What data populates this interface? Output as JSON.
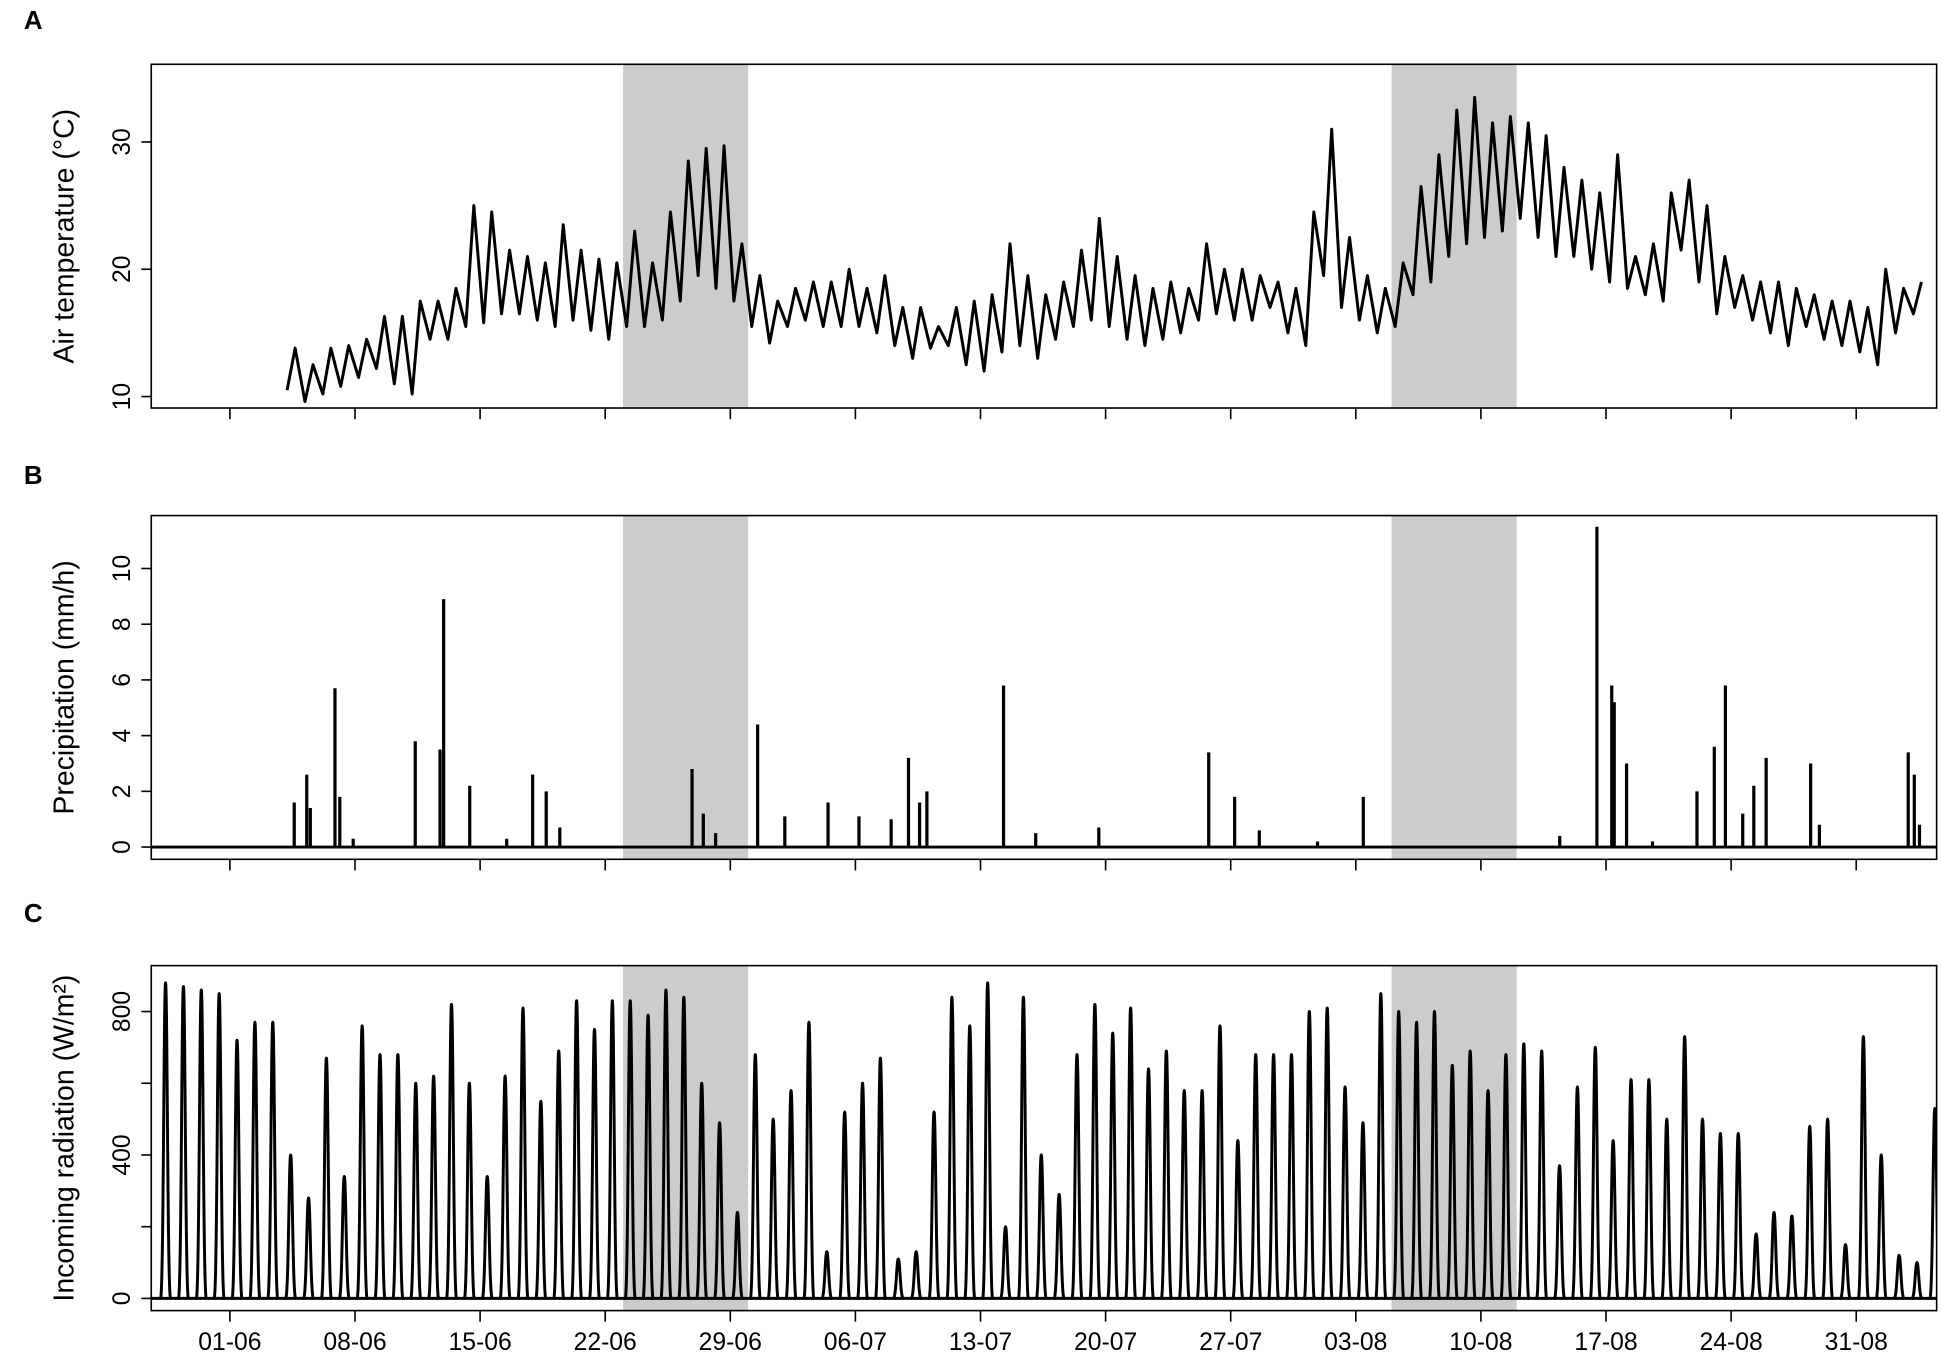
{
  "chart_data": [
    {
      "type": "line",
      "label": "A",
      "ylabel": "Air temperature (°C)",
      "color": "#000000",
      "highlight_color": "#cccccc",
      "highlights": [
        [
          22,
          29
        ],
        [
          65,
          72
        ]
      ],
      "xlim": [
        -4.4,
        95.5
      ],
      "xticks": [
        0,
        7,
        14,
        21,
        28,
        35,
        42,
        49,
        56,
        63,
        70,
        77,
        84,
        91
      ],
      "ylim": [
        9.1,
        36.1
      ],
      "yticks": [
        10,
        20,
        30
      ],
      "x": [
        3.2,
        3.65,
        4.2,
        4.65,
        5.2,
        5.65,
        6.2,
        6.65,
        7.2,
        7.65,
        8.2,
        8.65,
        9.2,
        9.65,
        10.2,
        10.65,
        11.2,
        11.65,
        12.2,
        12.65,
        13.2,
        13.65,
        14.2,
        14.65,
        15.2,
        15.65,
        16.2,
        16.65,
        17.2,
        17.65,
        18.2,
        18.65,
        19.2,
        19.65,
        20.2,
        20.65,
        21.2,
        21.65,
        22.2,
        22.65,
        23.2,
        23.65,
        24.2,
        24.65,
        25.2,
        25.65,
        26.2,
        26.65,
        27.2,
        27.65,
        28.2,
        28.65,
        29.2,
        29.65,
        30.2,
        30.65,
        31.2,
        31.65,
        32.2,
        32.65,
        33.2,
        33.65,
        34.2,
        34.65,
        35.2,
        35.65,
        36.2,
        36.65,
        37.2,
        37.65,
        38.2,
        38.65,
        39.2,
        39.65,
        40.2,
        40.65,
        41.2,
        41.65,
        42.2,
        42.65,
        43.2,
        43.65,
        44.2,
        44.65,
        45.2,
        45.65,
        46.2,
        46.65,
        47.2,
        47.65,
        48.2,
        48.65,
        49.2,
        49.65,
        50.2,
        50.65,
        51.2,
        51.65,
        52.2,
        52.65,
        53.2,
        53.65,
        54.2,
        54.65,
        55.2,
        55.65,
        56.2,
        56.65,
        57.2,
        57.65,
        58.2,
        58.65,
        59.2,
        59.65,
        60.2,
        60.65,
        61.2,
        61.65,
        62.2,
        62.65,
        63.2,
        63.65,
        64.2,
        64.65,
        65.2,
        65.65,
        66.2,
        66.65,
        67.2,
        67.65,
        68.2,
        68.65,
        69.2,
        69.65,
        70.2,
        70.65,
        71.2,
        71.65,
        72.2,
        72.65,
        73.2,
        73.65,
        74.2,
        74.65,
        75.2,
        75.65,
        76.2,
        76.65,
        77.2,
        77.65,
        78.2,
        78.65,
        79.2,
        79.65,
        80.2,
        80.65,
        81.2,
        81.65,
        82.2,
        82.65,
        83.2,
        83.65,
        84.2,
        84.65,
        85.2,
        85.65,
        86.2,
        86.65,
        87.2,
        87.65,
        88.2,
        88.65,
        89.2,
        89.65,
        90.2,
        90.65,
        91.2,
        91.65,
        92.2,
        92.65,
        93.2,
        93.65,
        94.2,
        94.65
      ],
      "values": [
        10.5,
        13.8,
        9.6,
        12.5,
        10.2,
        13.8,
        10.8,
        14,
        11.5,
        14.5,
        12.2,
        16.3,
        11,
        16.3,
        10.2,
        17.5,
        14.5,
        17.5,
        14.5,
        18.5,
        15.5,
        25,
        15.8,
        24.5,
        16.5,
        21.5,
        16.5,
        21,
        16,
        20.5,
        15.5,
        23.5,
        16,
        21.5,
        15.2,
        20.8,
        14.5,
        20.5,
        15.5,
        23,
        15.5,
        20.5,
        16,
        24.5,
        17.5,
        28.5,
        19.5,
        29.5,
        18.5,
        29.7,
        17.5,
        22,
        15.5,
        19.5,
        14.2,
        17.5,
        15.5,
        18.5,
        16,
        19,
        15.5,
        19,
        15.5,
        20,
        15.5,
        18.5,
        15,
        19.5,
        14,
        17,
        13,
        17,
        13.8,
        15.5,
        14,
        17,
        12.5,
        17.5,
        12,
        18,
        13.5,
        22,
        14,
        19.5,
        13,
        18,
        14.5,
        19,
        15.5,
        21.5,
        16,
        24,
        15.5,
        21,
        14.5,
        19.5,
        14,
        18.5,
        14.5,
        19,
        15,
        18.5,
        16,
        22,
        16.5,
        20,
        16,
        20,
        16,
        19.5,
        17,
        19,
        15,
        18.5,
        14,
        24.5,
        19.5,
        31,
        17,
        22.5,
        16,
        19.5,
        15,
        18.5,
        15.5,
        20.5,
        18,
        26.5,
        19,
        29,
        21,
        32.5,
        22,
        33.5,
        22.5,
        31.5,
        23,
        32,
        24,
        31.5,
        22.5,
        30.5,
        21,
        28,
        21,
        27,
        20,
        26,
        19,
        29,
        18.5,
        21,
        18,
        22,
        17.5,
        26,
        21.5,
        27,
        19,
        25,
        16.5,
        21,
        17,
        19.5,
        16,
        19,
        15,
        19,
        14,
        18.5,
        15.5,
        18,
        14.5,
        17.5,
        14,
        17.5,
        13.5,
        17,
        12.5,
        20,
        15,
        18.5,
        16.5,
        19
      ]
    },
    {
      "type": "spike",
      "label": "B",
      "ylabel": "Precipitation (mm/h)",
      "color": "#000000",
      "highlight_color": "#cccccc",
      "highlights": [
        [
          22,
          29
        ],
        [
          65,
          72
        ]
      ],
      "xlim": [
        -4.4,
        95.5
      ],
      "xticks": [
        0,
        7,
        14,
        21,
        28,
        35,
        42,
        49,
        56,
        63,
        70,
        77,
        84,
        91
      ],
      "ylim": [
        -0.44,
        11.9
      ],
      "yticks": [
        0,
        2,
        4,
        6,
        8,
        10
      ],
      "x": [
        3.6,
        4.3,
        4.5,
        5.88,
        6.15,
        6.9,
        10.37,
        11.76,
        11.96,
        13.42,
        15.49,
        16.94,
        17.7,
        18.46,
        25.86,
        26.49,
        27.18,
        29.53,
        31.05,
        33.47,
        35.2,
        37.0,
        37.97,
        38.59,
        39.0,
        43.29,
        45.09,
        48.62,
        54.77,
        56.22,
        57.6,
        60.86,
        63.42,
        74.41,
        76.49,
        77.32,
        77.46,
        78.15,
        79.6,
        82.09,
        83.06,
        83.68,
        84.65,
        85.27,
        85.96,
        88.45,
        88.94,
        93.91,
        94.25,
        94.54
      ],
      "values": [
        1.6,
        2.6,
        1.4,
        5.7,
        1.8,
        0.3,
        3.8,
        3.5,
        8.9,
        2.2,
        0.3,
        2.6,
        2,
        0.7,
        2.8,
        1.2,
        0.5,
        4.4,
        1.1,
        1.6,
        1.1,
        1,
        3.2,
        1.6,
        2,
        5.8,
        0.5,
        0.7,
        3.4,
        1.8,
        0.6,
        0.2,
        1.8,
        0.4,
        11.5,
        5.8,
        5.2,
        3,
        0.2,
        2,
        3.6,
        5.8,
        1.2,
        2.2,
        3.2,
        3,
        0.8,
        3.4,
        2.6,
        0.8
      ]
    },
    {
      "type": "peak",
      "label": "C",
      "ylabel": "Incoming radiation (W/m²)",
      "color": "#000000",
      "highlight_color": "#cccccc",
      "highlights": [
        [
          22,
          29
        ],
        [
          65,
          72
        ]
      ],
      "xlim": [
        -4.4,
        95.5
      ],
      "xticks": [
        {
          "value": 0,
          "label": "01-06"
        },
        {
          "value": 7,
          "label": "08-06"
        },
        {
          "value": 14,
          "label": "15-06"
        },
        {
          "value": 21,
          "label": "22-06"
        },
        {
          "value": 28,
          "label": "29-06"
        },
        {
          "value": 35,
          "label": "06-07"
        },
        {
          "value": 42,
          "label": "13-07"
        },
        {
          "value": 49,
          "label": "20-07"
        },
        {
          "value": 56,
          "label": "27-07"
        },
        {
          "value": 63,
          "label": "03-08"
        },
        {
          "value": 70,
          "label": "10-08"
        },
        {
          "value": 77,
          "label": "17-08"
        },
        {
          "value": 84,
          "label": "24-08"
        },
        {
          "value": 91,
          "label": "31-08"
        }
      ],
      "ylim": [
        -34,
        928
      ],
      "yticks": [
        0,
        {
          "value": 200,
          "label": null
        },
        400,
        {
          "value": 600,
          "label": null
        },
        800
      ],
      "x": [
        -3.6,
        -2.6,
        -1.6,
        -0.6,
        0.4,
        1.4,
        2.4,
        3.4,
        4.4,
        5.4,
        6.4,
        7.4,
        8.4,
        9.4,
        10.4,
        11.4,
        12.4,
        13.4,
        14.4,
        15.4,
        16.4,
        17.4,
        18.4,
        19.4,
        20.4,
        21.4,
        22.4,
        23.4,
        24.4,
        25.4,
        26.4,
        27.4,
        28.4,
        29.4,
        30.4,
        31.4,
        32.4,
        33.4,
        34.4,
        35.4,
        36.4,
        37.4,
        38.4,
        39.4,
        40.4,
        41.4,
        42.4,
        43.4,
        44.4,
        45.4,
        46.4,
        47.4,
        48.4,
        49.4,
        50.4,
        51.4,
        52.4,
        53.4,
        54.4,
        55.4,
        56.4,
        57.4,
        58.4,
        59.4,
        60.4,
        61.4,
        62.4,
        63.4,
        64.4,
        65.4,
        66.4,
        67.4,
        68.4,
        69.4,
        70.4,
        71.4,
        72.4,
        73.4,
        74.4,
        75.4,
        76.4,
        77.4,
        78.4,
        79.4,
        80.4,
        81.4,
        82.4,
        83.4,
        84.4,
        85.4,
        86.4,
        87.4,
        88.4,
        89.4,
        90.4,
        91.4,
        92.4,
        93.4,
        94.4,
        95.4
      ],
      "values": [
        880,
        870,
        860,
        850,
        720,
        770,
        770,
        400,
        280,
        670,
        340,
        760,
        680,
        680,
        600,
        620,
        820,
        600,
        340,
        620,
        810,
        550,
        690,
        830,
        750,
        830,
        830,
        790,
        860,
        840,
        600,
        490,
        240,
        680,
        500,
        580,
        770,
        130,
        520,
        600,
        670,
        110,
        130,
        520,
        840,
        760,
        880,
        200,
        840,
        400,
        290,
        680,
        820,
        740,
        810,
        640,
        690,
        580,
        580,
        760,
        440,
        680,
        680,
        680,
        800,
        810,
        590,
        490,
        850,
        800,
        770,
        800,
        650,
        690,
        580,
        680,
        710,
        690,
        370,
        590,
        700,
        440,
        610,
        610,
        500,
        730,
        500,
        460,
        460,
        180,
        240,
        230,
        480,
        500,
        150,
        730,
        400,
        120,
        100,
        530
      ]
    }
  ]
}
